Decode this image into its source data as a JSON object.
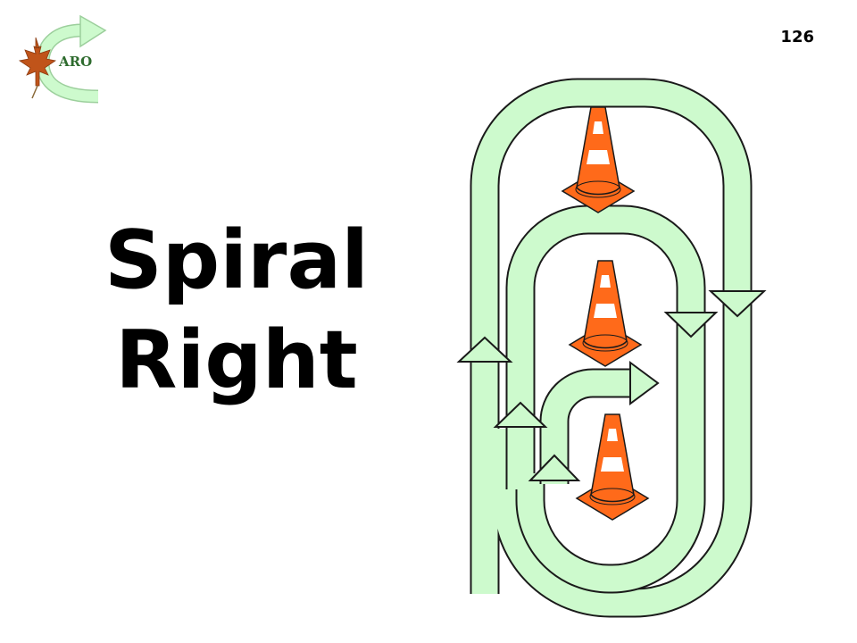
{
  "slide": {
    "number": "126",
    "title_line_1": "Spiral",
    "title_line_2": "Right"
  },
  "logo": {
    "text": "ARO",
    "icon": "maple-leaf-icon",
    "arrow_icon": "curved-arrow-icon"
  },
  "colors": {
    "lane_fill": "#cdfacd",
    "lane_outline": "#1a1a1a",
    "cone_orange": "#ff6a1a",
    "cone_stripe": "#ffffff",
    "logo_leaf": "#c0541a",
    "logo_arrow": "#cdfacd",
    "logo_text": "#2e6b2e"
  },
  "diagram": {
    "cones": 3,
    "description_icon": "traffic-cone-icon"
  }
}
